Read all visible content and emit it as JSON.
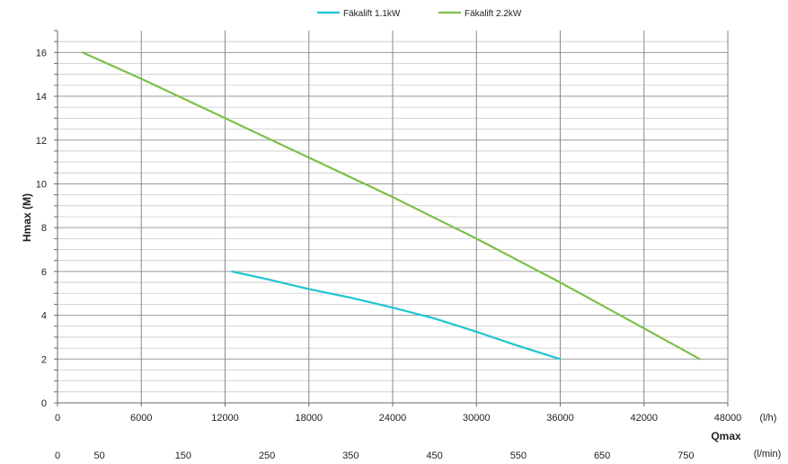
{
  "chart_data": {
    "type": "line",
    "title": "",
    "xlabel": "Qmax",
    "ylabel": "Hmax (M)",
    "x_unit": "(l/h)",
    "x2_unit": "(l/min)",
    "xlim": [
      0,
      48000
    ],
    "ylim": [
      0,
      17
    ],
    "x_ticks": [
      "0",
      "6000",
      "12000",
      "18000",
      "24000",
      "30000",
      "36000",
      "42000",
      "48000"
    ],
    "x2_ticks": [
      "0",
      "50",
      "150",
      "250",
      "350",
      "450",
      "550",
      "650",
      "750"
    ],
    "x2_tick_positions_lmin": [
      0,
      50,
      150,
      250,
      350,
      450,
      550,
      650,
      750
    ],
    "y_ticks": [
      "0",
      "2",
      "4",
      "6",
      "8",
      "10",
      "12",
      "14",
      "16"
    ],
    "grid": true,
    "legend_position": "top",
    "series": [
      {
        "name": "Fäkalift 1.1kW",
        "color": "#1fc5d1",
        "x": [
          12500,
          15000,
          18000,
          21000,
          24000,
          27000,
          30000,
          33000,
          36000
        ],
        "y": [
          6.0,
          5.65,
          5.2,
          4.8,
          4.35,
          3.85,
          3.25,
          2.6,
          2.0
        ]
      },
      {
        "name": "Fäkalift 2.2kW",
        "color": "#7cc04a",
        "x": [
          1800,
          6000,
          12000,
          18000,
          24000,
          30000,
          36000,
          42000,
          46000
        ],
        "y": [
          16.0,
          14.8,
          13.0,
          11.2,
          9.4,
          7.5,
          5.5,
          3.4,
          2.0
        ]
      }
    ]
  }
}
